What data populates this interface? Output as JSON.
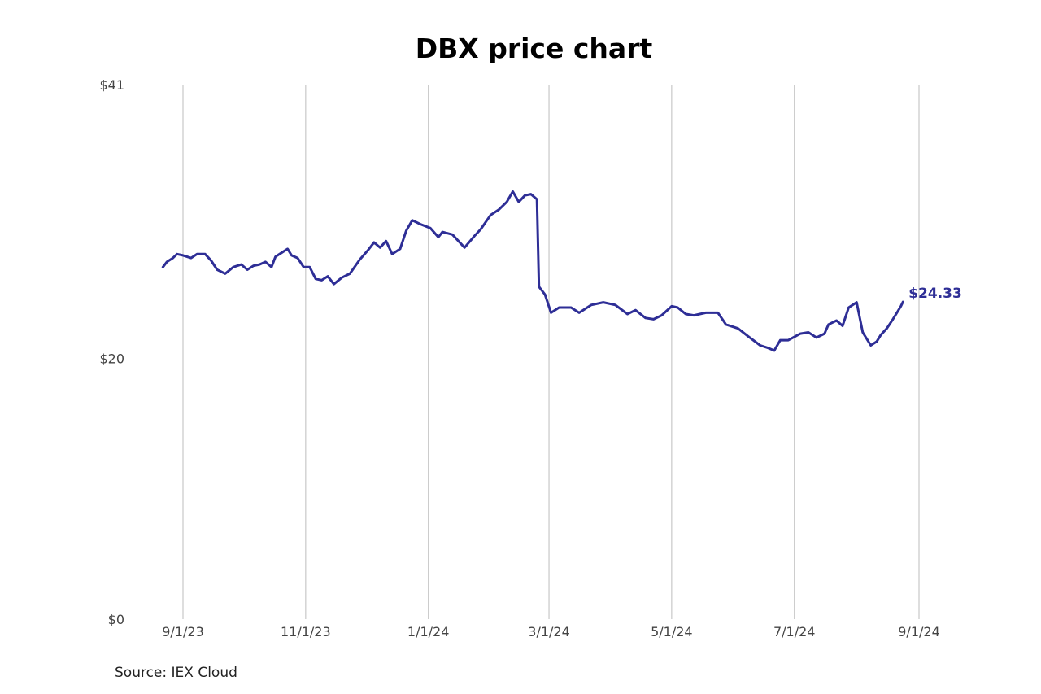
{
  "title": "DBX price chart",
  "source": "Source: IEX Cloud",
  "colors": {
    "line": "#2e2e96",
    "grid": "#c8c8c8",
    "text": "#444444"
  },
  "chart_data": {
    "type": "line",
    "title": "DBX price chart",
    "xlabel": "",
    "ylabel": "",
    "ylim": [
      0,
      41
    ],
    "xlim": [
      "2023-08-18",
      "2024-09-01"
    ],
    "y_ticks": [
      {
        "value": 0,
        "label": "$0"
      },
      {
        "value": 20,
        "label": "$20"
      },
      {
        "value": 41,
        "label": "$41"
      }
    ],
    "x_ticks": [
      {
        "date": "2023-09-01",
        "label": "9/1/23"
      },
      {
        "date": "2023-11-01",
        "label": "11/1/23"
      },
      {
        "date": "2024-01-01",
        "label": "1/1/24"
      },
      {
        "date": "2024-03-01",
        "label": "3/1/24"
      },
      {
        "date": "2024-05-01",
        "label": "5/1/24"
      },
      {
        "date": "2024-07-01",
        "label": "7/1/24"
      },
      {
        "date": "2024-09-01",
        "label": "9/1/24"
      }
    ],
    "grid": "vertical",
    "end_label": "$24.33",
    "series": [
      {
        "color": "#2e2e96",
        "points": [
          [
            "2023-08-22",
            27.0
          ],
          [
            "2023-08-24",
            27.4
          ],
          [
            "2023-08-27",
            27.7
          ],
          [
            "2023-08-29",
            28.0
          ],
          [
            "2023-09-01",
            27.9
          ],
          [
            "2023-09-05",
            27.7
          ],
          [
            "2023-09-08",
            28.0
          ],
          [
            "2023-09-12",
            28.0
          ],
          [
            "2023-09-15",
            27.5
          ],
          [
            "2023-09-18",
            26.8
          ],
          [
            "2023-09-22",
            26.5
          ],
          [
            "2023-09-26",
            27.0
          ],
          [
            "2023-09-30",
            27.2
          ],
          [
            "2023-10-03",
            26.8
          ],
          [
            "2023-10-06",
            27.1
          ],
          [
            "2023-10-09",
            27.2
          ],
          [
            "2023-10-12",
            27.4
          ],
          [
            "2023-10-15",
            27.0
          ],
          [
            "2023-10-17",
            27.8
          ],
          [
            "2023-10-20",
            28.1
          ],
          [
            "2023-10-23",
            28.4
          ],
          [
            "2023-10-25",
            27.9
          ],
          [
            "2023-10-28",
            27.7
          ],
          [
            "2023-10-31",
            27.0
          ],
          [
            "2023-11-03",
            27.0
          ],
          [
            "2023-11-06",
            26.1
          ],
          [
            "2023-11-09",
            26.0
          ],
          [
            "2023-11-12",
            26.3
          ],
          [
            "2023-11-15",
            25.7
          ],
          [
            "2023-11-19",
            26.2
          ],
          [
            "2023-11-23",
            26.5
          ],
          [
            "2023-11-28",
            27.6
          ],
          [
            "2023-12-02",
            28.3
          ],
          [
            "2023-12-05",
            28.9
          ],
          [
            "2023-12-08",
            28.5
          ],
          [
            "2023-12-11",
            29.0
          ],
          [
            "2023-12-14",
            28.0
          ],
          [
            "2023-12-18",
            28.4
          ],
          [
            "2023-12-21",
            29.8
          ],
          [
            "2023-12-24",
            30.6
          ],
          [
            "2023-12-28",
            30.3
          ],
          [
            "2024-01-02",
            30.0
          ],
          [
            "2024-01-06",
            29.3
          ],
          [
            "2024-01-08",
            29.7
          ],
          [
            "2024-01-13",
            29.5
          ],
          [
            "2024-01-19",
            28.5
          ],
          [
            "2024-01-24",
            29.4
          ],
          [
            "2024-01-27",
            29.9
          ],
          [
            "2024-02-01",
            31.0
          ],
          [
            "2024-02-05",
            31.4
          ],
          [
            "2024-02-09",
            32.0
          ],
          [
            "2024-02-12",
            32.8
          ],
          [
            "2024-02-15",
            32.0
          ],
          [
            "2024-02-18",
            32.5
          ],
          [
            "2024-02-21",
            32.6
          ],
          [
            "2024-02-24",
            32.2
          ],
          [
            "2024-02-25",
            25.5
          ],
          [
            "2024-02-28",
            24.9
          ],
          [
            "2024-03-02",
            23.5
          ],
          [
            "2024-03-06",
            23.9
          ],
          [
            "2024-03-12",
            23.9
          ],
          [
            "2024-03-16",
            23.5
          ],
          [
            "2024-03-22",
            24.1
          ],
          [
            "2024-03-28",
            24.3
          ],
          [
            "2024-04-03",
            24.1
          ],
          [
            "2024-04-09",
            23.4
          ],
          [
            "2024-04-13",
            23.7
          ],
          [
            "2024-04-18",
            23.1
          ],
          [
            "2024-04-22",
            23.0
          ],
          [
            "2024-04-26",
            23.3
          ],
          [
            "2024-05-01",
            24.0
          ],
          [
            "2024-05-04",
            23.9
          ],
          [
            "2024-05-08",
            23.4
          ],
          [
            "2024-05-12",
            23.3
          ],
          [
            "2024-05-18",
            23.5
          ],
          [
            "2024-05-24",
            23.5
          ],
          [
            "2024-05-28",
            22.6
          ],
          [
            "2024-06-03",
            22.3
          ],
          [
            "2024-06-08",
            21.7
          ],
          [
            "2024-06-14",
            21.0
          ],
          [
            "2024-06-18",
            20.8
          ],
          [
            "2024-06-21",
            20.6
          ],
          [
            "2024-06-24",
            21.4
          ],
          [
            "2024-06-28",
            21.4
          ],
          [
            "2024-07-04",
            21.9
          ],
          [
            "2024-07-08",
            22.0
          ],
          [
            "2024-07-12",
            21.6
          ],
          [
            "2024-07-16",
            21.9
          ],
          [
            "2024-07-18",
            22.6
          ],
          [
            "2024-07-22",
            22.9
          ],
          [
            "2024-07-25",
            22.5
          ],
          [
            "2024-07-28",
            23.9
          ],
          [
            "2024-08-01",
            24.3
          ],
          [
            "2024-08-04",
            22.0
          ],
          [
            "2024-08-08",
            21.0
          ],
          [
            "2024-08-11",
            21.3
          ],
          [
            "2024-08-13",
            21.8
          ],
          [
            "2024-08-16",
            22.3
          ],
          [
            "2024-08-19",
            23.0
          ],
          [
            "2024-08-23",
            24.0
          ],
          [
            "2024-08-24",
            24.33
          ]
        ]
      }
    ]
  }
}
